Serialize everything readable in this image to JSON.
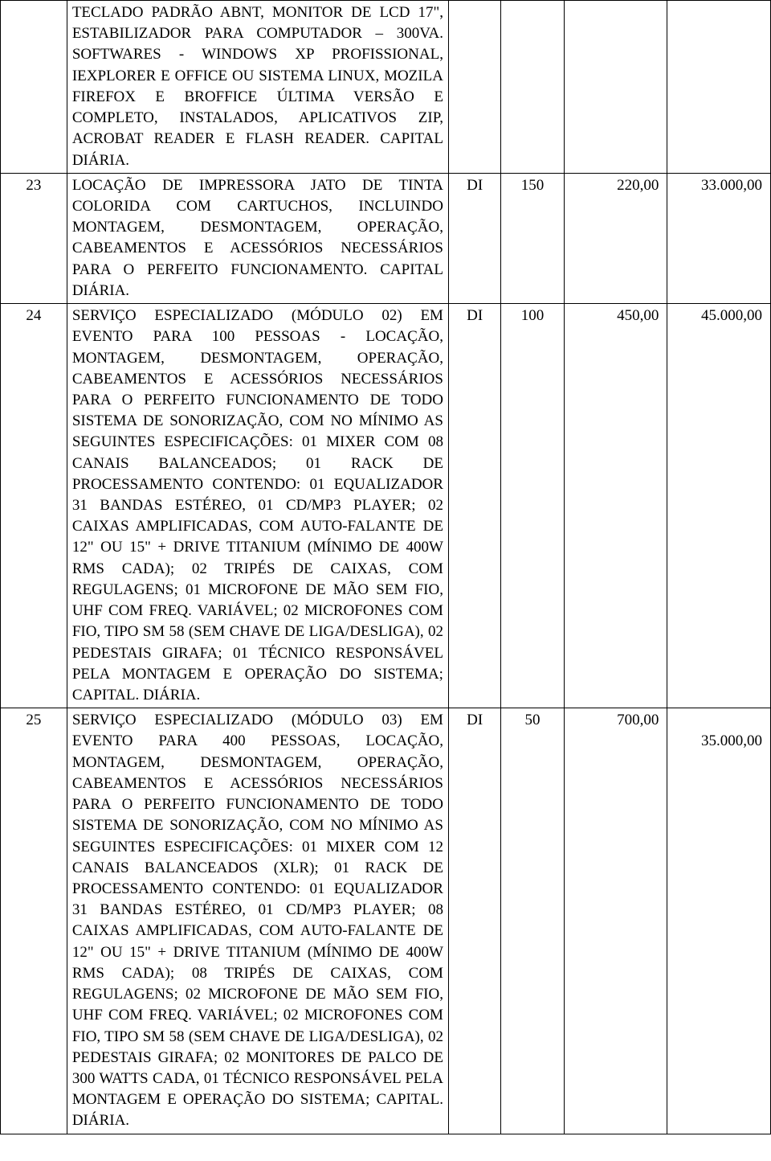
{
  "table": {
    "rows": [
      {
        "num": "",
        "desc": "TECLADO PADRÃO ABNT, MONITOR DE LCD 17\", ESTABILIZADOR PARA COMPUTADOR – 300VA. SOFTWARES - WINDOWS XP PROFISSIONAL, IEXPLORER E OFFICE OU SISTEMA LINUX, MOZILA FIREFOX E BROFFICE ÚLTIMA VERSÃO E COMPLETO, INSTALADOS, APLICATIVOS ZIP, ACROBAT READER E FLASH READER. CAPITAL DIÁRIA.",
        "unit": "",
        "qty": "",
        "price": "",
        "total": ""
      },
      {
        "num": "23",
        "desc": "LOCAÇÃO DE IMPRESSORA JATO DE TINTA COLORIDA COM CARTUCHOS, INCLUINDO MONTAGEM, DESMONTAGEM, OPERAÇÃO, CABEAMENTOS E ACESSÓRIOS NECESSÁRIOS PARA O PERFEITO FUNCIONAMENTO. CAPITAL DIÁRIA.",
        "unit": "DI",
        "qty": "150",
        "price": "220,00",
        "total": "33.000,00"
      },
      {
        "num": "24",
        "desc": "SERVIÇO ESPECIALIZADO (MÓDULO 02) EM EVENTO PARA 100 PESSOAS - LOCAÇÃO, MONTAGEM, DESMONTAGEM, OPERAÇÃO, CABEAMENTOS E ACESSÓRIOS NECESSÁRIOS PARA O PERFEITO FUNCIONAMENTO DE TODO SISTEMA DE SONORIZAÇÃO, COM NO MÍNIMO AS SEGUINTES ESPECIFICAÇÕES: 01 MIXER COM 08 CANAIS BALANCEADOS; 01 RACK DE PROCESSAMENTO CONTENDO: 01 EQUALIZADOR 31 BANDAS ESTÉREO, 01 CD/MP3 PLAYER; 02 CAIXAS AMPLIFICADAS, COM AUTO-FALANTE DE 12\" OU 15\" + DRIVE TITANIUM (MÍNIMO DE 400W RMS CADA); 02 TRIPÉS DE CAIXAS, COM REGULAGENS; 01 MICROFONE DE MÃO SEM FIO, UHF COM FREQ. VARIÁVEL; 02 MICROFONES COM FIO, TIPO SM 58 (SEM CHAVE DE LIGA/DESLIGA), 02 PEDESTAIS GIRAFA; 01 TÉCNICO RESPONSÁVEL PELA MONTAGEM E OPERAÇÃO DO SISTEMA; CAPITAL. DIÁRIA.",
        "unit": "DI",
        "qty": "100",
        "price": "450,00",
        "total": "45.000,00"
      },
      {
        "num": "25",
        "desc": "SERVIÇO ESPECIALIZADO (MÓDULO 03) EM EVENTO PARA 400 PESSOAS, LOCAÇÃO, MONTAGEM, DESMONTAGEM, OPERAÇÃO, CABEAMENTOS E ACESSÓRIOS NECESSÁRIOS PARA O PERFEITO FUNCIONAMENTO DE TODO SISTEMA DE SONORIZAÇÃO, COM NO MÍNIMO AS SEGUINTES ESPECIFICAÇÕES: 01 MIXER COM 12 CANAIS BALANCEADOS (XLR); 01 RACK DE PROCESSAMENTO CONTENDO: 01 EQUALIZADOR 31 BANDAS ESTÉREO, 01 CD/MP3 PLAYER; 08 CAIXAS AMPLIFICADAS, COM AUTO-FALANTE DE 12\" OU 15\" + DRIVE TITANIUM (MÍNIMO DE 400W RMS CADA); 08 TRIPÉS DE CAIXAS, COM REGULAGENS; 02 MICROFONE DE MÃO SEM FIO, UHF COM FREQ. VARIÁVEL; 02 MICROFONES COM FIO, TIPO SM 58 (SEM CHAVE DE LIGA/DESLIGA), 02 PEDESTAIS GIRAFA; 02 MONITORES DE PALCO DE 300 WATTS CADA, 01 TÉCNICO RESPONSÁVEL PELA MONTAGEM E OPERAÇÃO DO SISTEMA; CAPITAL. DIÁRIA.",
        "unit": "DI",
        "qty": "50",
        "price": "700,00",
        "total": "35.000,00",
        "total_padded": true
      }
    ]
  }
}
